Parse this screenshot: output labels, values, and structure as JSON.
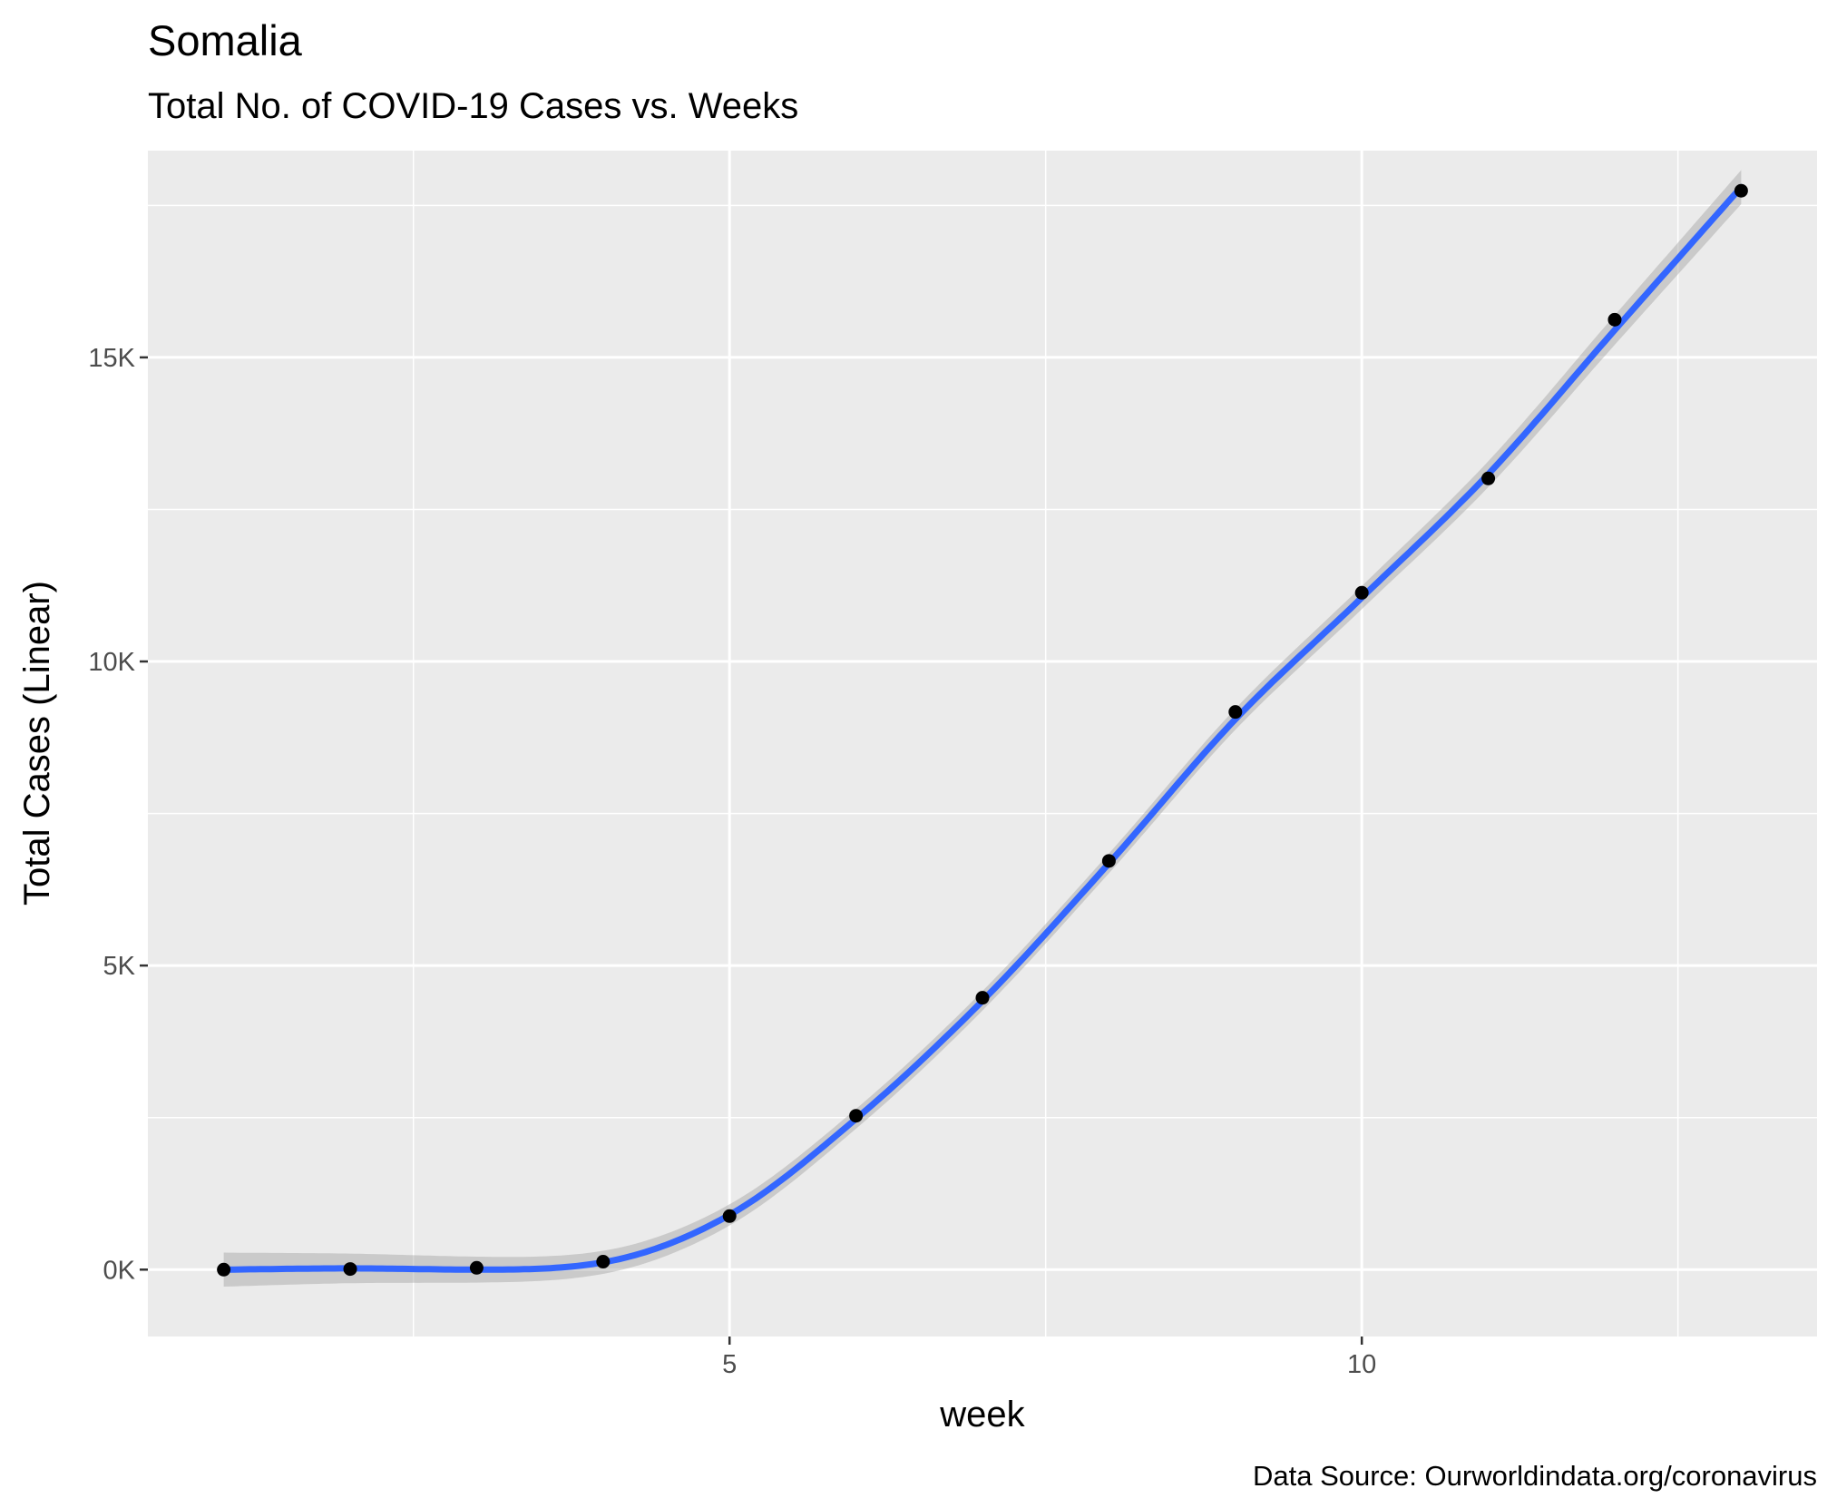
{
  "chart_data": {
    "type": "scatter",
    "title": "Somalia",
    "subtitle": "Total No. of COVID-19 Cases vs. Weeks",
    "xlabel": "week",
    "ylabel": "Total Cases (Linear)",
    "caption": "Data Source: Ourworldindata.org/coronavirus",
    "xlim": [
      0.4,
      13.6
    ],
    "ylim": [
      -1100,
      18400
    ],
    "x_ticks": [
      5,
      10
    ],
    "x_tick_labels": [
      "5",
      "10"
    ],
    "y_ticks": [
      0,
      5000,
      10000,
      15000
    ],
    "y_tick_labels": [
      "0K",
      "5K",
      "10K",
      "15K"
    ],
    "grid": true,
    "points": {
      "x": [
        1,
        2,
        3,
        4,
        5,
        6,
        7,
        8,
        9,
        10,
        11,
        12,
        13
      ],
      "y": [
        0,
        10,
        30,
        130,
        880,
        2530,
        4470,
        6720,
        9170,
        11130,
        13010,
        15620,
        17740
      ]
    },
    "smooth_fit": {
      "method": "loess",
      "confidence_band": true,
      "line_color": "#3366FF",
      "band_color": "#999999",
      "x": [
        1,
        2,
        3,
        4,
        5,
        6,
        7,
        8,
        9,
        10,
        11,
        12,
        13
      ],
      "y": [
        0,
        20,
        0,
        120,
        900,
        2480,
        4420,
        6680,
        9050,
        11050,
        13080,
        15450,
        17800
      ]
    },
    "colors": {
      "panel_background": "#EBEBEB",
      "grid": "#FFFFFF",
      "points": "#000000"
    }
  }
}
